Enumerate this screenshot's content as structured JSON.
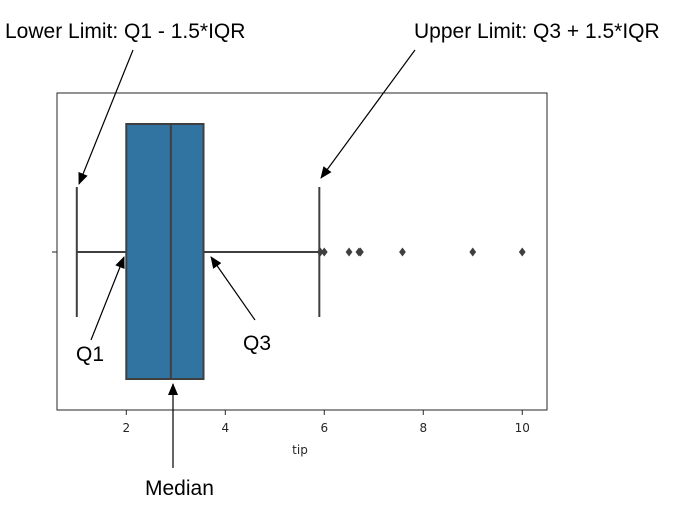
{
  "annotations": {
    "lower_limit": "Lower Limit: Q1 - 1.5*IQR",
    "upper_limit": "Upper Limit: Q3 + 1.5*IQR",
    "q1": "Q1",
    "q3": "Q3",
    "median": "Median"
  },
  "chart_data": {
    "type": "boxplot",
    "title": "",
    "xlabel": "tip",
    "ylabel": "",
    "xlim": [
      0.6,
      10.5
    ],
    "xticks": [
      2,
      4,
      6,
      8,
      10
    ],
    "xtick_labels": [
      "2",
      "4",
      "6",
      "8",
      "10"
    ],
    "grid": false,
    "box": {
      "whisker_low": 1.0,
      "q1": 2.0,
      "median": 2.9,
      "q3": 3.56,
      "whisker_high": 5.9
    },
    "outliers": [
      5.92,
      6.0,
      6.5,
      6.7,
      6.73,
      7.58,
      9.0,
      10.0
    ],
    "colors": {
      "box_fill": "#3274a1",
      "line": "#3f3f3f",
      "axes": "#262626"
    }
  }
}
